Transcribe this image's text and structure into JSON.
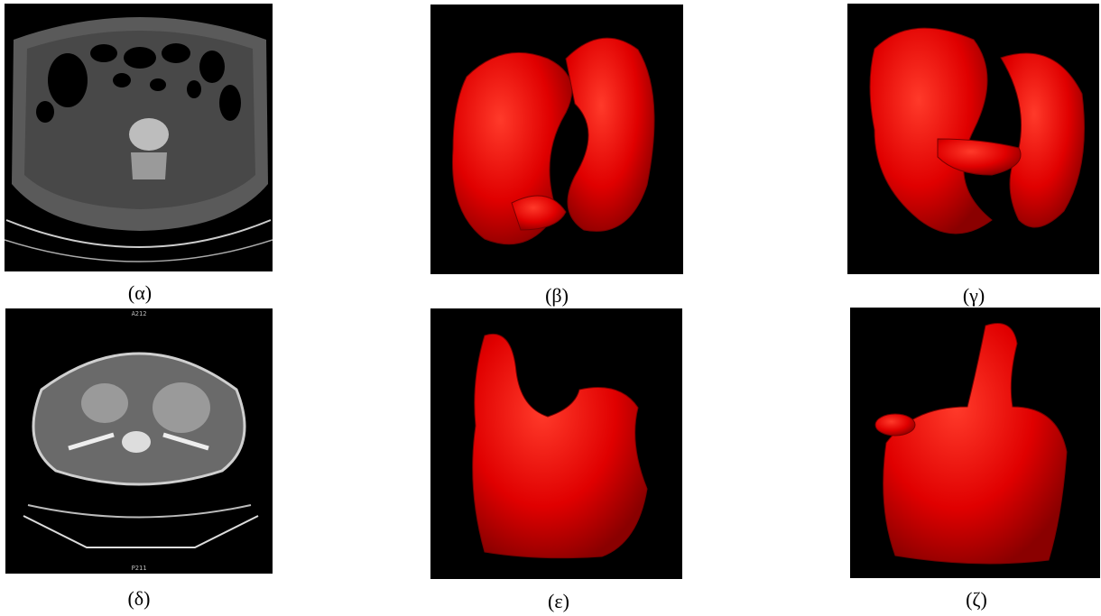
{
  "figure": {
    "panels": [
      {
        "caption": "(α)"
      },
      {
        "caption": "(β)"
      },
      {
        "caption": "(γ)"
      },
      {
        "caption": "(δ)",
        "overlay_top": "A212",
        "overlay_bottom": "P211"
      },
      {
        "caption": "(ε)"
      },
      {
        "caption": "(ζ)"
      }
    ]
  }
}
